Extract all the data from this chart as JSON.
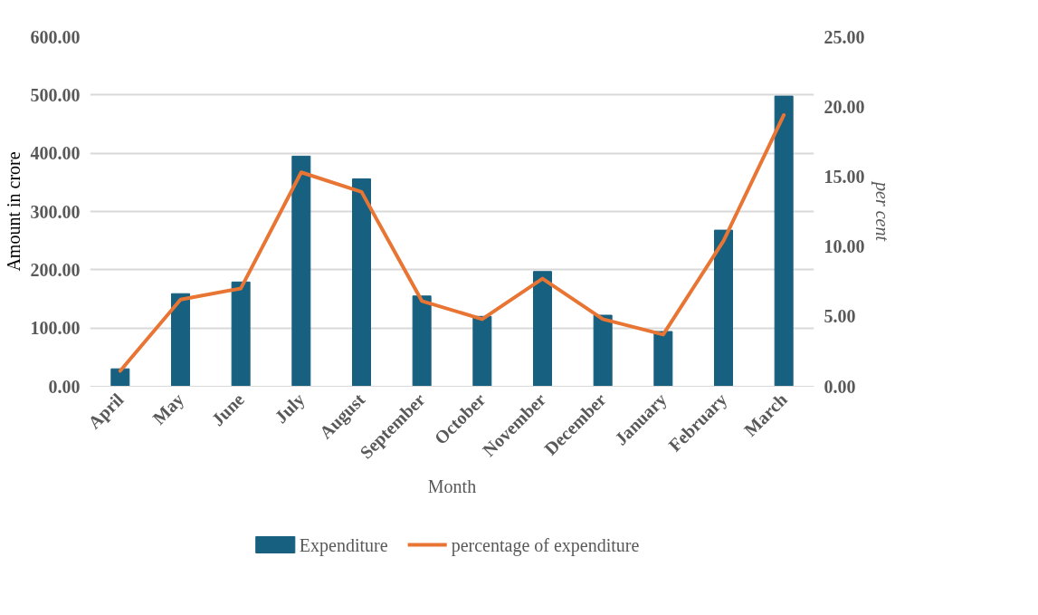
{
  "chart_data": {
    "type": "bar",
    "categories": [
      "April",
      "May",
      "June",
      "July",
      "August",
      "September",
      "October",
      "November",
      "December",
      "January",
      "February",
      "March"
    ],
    "xlabel": "Month",
    "ylabel": "Amount in crore",
    "y2label": "per cent",
    "series": [
      {
        "name": "Expenditure",
        "color": "#17607f",
        "values": [
          30,
          159,
          179,
          395,
          356,
          155,
          120,
          197,
          122,
          94,
          268,
          498
        ]
      },
      {
        "name": "percentage of expenditure",
        "type": "line",
        "axis": "y2",
        "color": "#e97534",
        "values": [
          1.1,
          6.2,
          7.0,
          15.3,
          13.9,
          6.1,
          4.8,
          7.7,
          4.8,
          3.7,
          10.4,
          19.4
        ]
      }
    ],
    "ylim": [
      0,
      600
    ],
    "yticks": [
      {
        "value": 0,
        "label": "0.00"
      },
      {
        "value": 100,
        "label": "100.00"
      },
      {
        "value": 200,
        "label": "200.00"
      },
      {
        "value": 300,
        "label": "300.00"
      },
      {
        "value": 400,
        "label": "400.00"
      },
      {
        "value": 500,
        "label": "500.00"
      },
      {
        "value": 600,
        "label": "600.00"
      }
    ],
    "y2lim": [
      0,
      25
    ],
    "y2ticks": [
      {
        "value": 0,
        "label": "0.00"
      },
      {
        "value": 5,
        "label": "5.00"
      },
      {
        "value": 10,
        "label": "10.00"
      },
      {
        "value": 15,
        "label": "15.00"
      },
      {
        "value": 20,
        "label": "20.00"
      },
      {
        "value": 25,
        "label": "25.00"
      }
    ],
    "grid": "y",
    "legend": "bottom"
  }
}
